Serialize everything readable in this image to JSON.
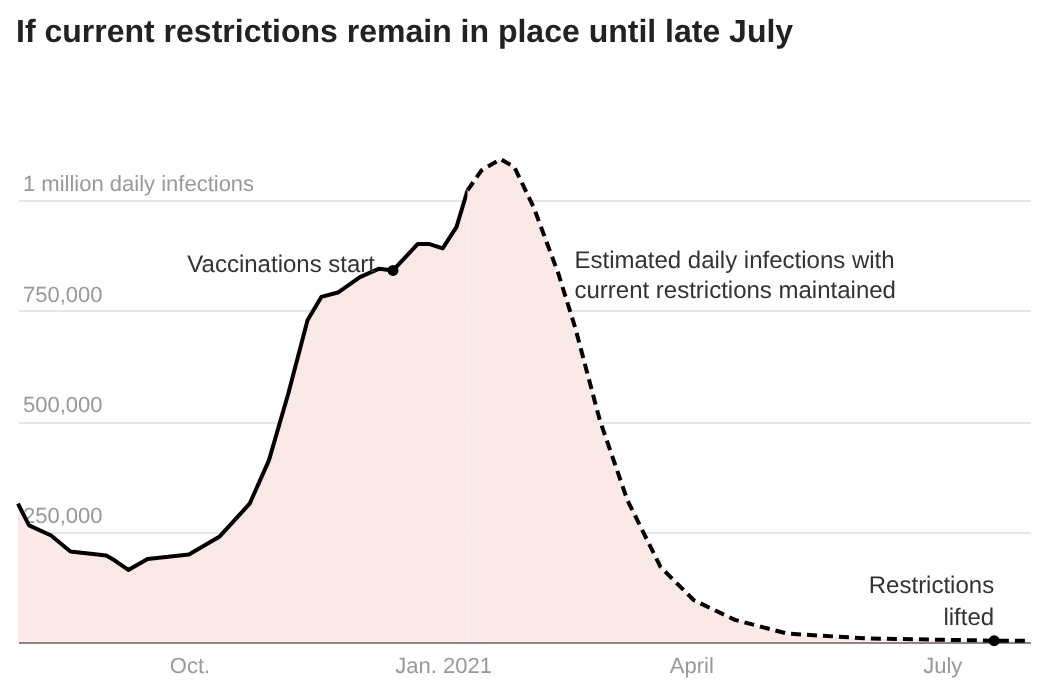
{
  "chart_data": {
    "type": "area",
    "title": "If current restrictions remain in place until late July",
    "xlim": [
      "2020-07-31",
      "2021-08-02"
    ],
    "xticks": [
      {
        "value": "2020-10-01",
        "label": "Oct."
      },
      {
        "value": "2021-01-01",
        "label": "Jan. 2021"
      },
      {
        "value": "2021-04-01",
        "label": "April"
      },
      {
        "value": "2021-07-01",
        "label": "July"
      }
    ],
    "ylim": [
      0,
      1100000
    ],
    "yticks": [
      {
        "value": 250000,
        "label": "250,000"
      },
      {
        "value": 500000,
        "label": "500,000"
      },
      {
        "value": 750000,
        "label": "750,000"
      },
      {
        "value": 1000000,
        "label": "1 million daily infections"
      }
    ],
    "grid": "y",
    "series": [
      {
        "type": "area",
        "color": "#fbe9e8",
        "line_style": "solid",
        "x": [
          "2020-07-31",
          "2020-08-04",
          "2020-08-12",
          "2020-08-19",
          "2020-09-01",
          "2020-09-04",
          "2020-09-09",
          "2020-09-16",
          "2020-10-01",
          "2020-10-12",
          "2020-10-23",
          "2020-10-30",
          "2020-11-06",
          "2020-11-13",
          "2020-11-18",
          "2020-11-24",
          "2020-12-02",
          "2020-12-09",
          "2020-12-14",
          "2020-12-23",
          "2020-12-27",
          "2021-01-01",
          "2021-01-06",
          "2021-01-10"
        ],
        "values": [
          313000,
          264000,
          241000,
          205000,
          196000,
          185000,
          163000,
          188000,
          198000,
          238000,
          313000,
          411000,
          562000,
          728000,
          781000,
          791000,
          826000,
          845000,
          841000,
          901000,
          901000,
          891000,
          939000,
          1022000
        ]
      },
      {
        "type": "area",
        "name": "Estimated daily infections with current restrictions maintained",
        "color": "#fbe9e8",
        "line_style": "dashed",
        "x": [
          "2021-01-10",
          "2021-01-15",
          "2021-01-22",
          "2021-01-27",
          "2021-02-03",
          "2021-02-12",
          "2021-02-18",
          "2021-02-27",
          "2021-03-09",
          "2021-03-21",
          "2021-04-02",
          "2021-04-17",
          "2021-05-06",
          "2021-06-04",
          "2021-07-20",
          "2021-08-02"
        ],
        "values": [
          1022000,
          1067000,
          1093000,
          1075000,
          984000,
          833000,
          713000,
          502000,
          321000,
          170000,
          95000,
          50000,
          19000,
          8000,
          3000,
          3000
        ]
      }
    ],
    "annotations": [
      {
        "text": "Vaccinations start",
        "x": "2020-12-14",
        "y": 841000
      },
      {
        "text": "Restrictions lifted",
        "x": "2021-07-20",
        "y": 3000
      }
    ]
  }
}
